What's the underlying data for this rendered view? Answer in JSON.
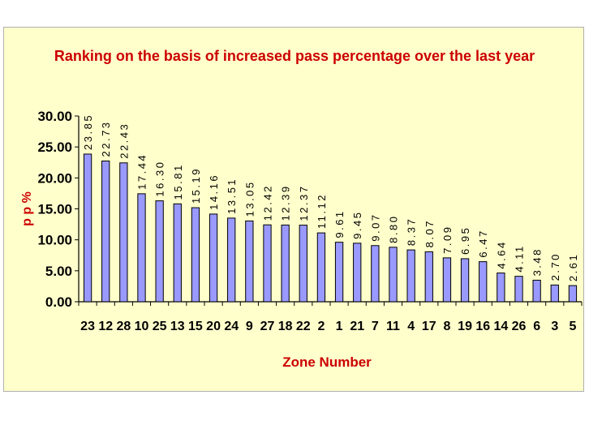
{
  "chart_data": {
    "type": "bar",
    "title": "Ranking on the basis of increased pass percentage over the last year",
    "xlabel": "Zone Number",
    "ylabel": "p p %",
    "ylim": [
      0,
      30
    ],
    "yticks": [
      "0.00",
      "5.00",
      "10.00",
      "15.00",
      "20.00",
      "25.00",
      "30.00"
    ],
    "categories": [
      "23",
      "12",
      "28",
      "10",
      "25",
      "13",
      "15",
      "20",
      "24",
      "9",
      "27",
      "18",
      "22",
      "2",
      "1",
      "21",
      "7",
      "11",
      "4",
      "17",
      "8",
      "19",
      "16",
      "14",
      "26",
      "6",
      "3",
      "5"
    ],
    "values": [
      23.85,
      22.73,
      22.43,
      17.44,
      16.3,
      15.81,
      15.19,
      14.16,
      13.51,
      13.05,
      12.42,
      12.39,
      12.37,
      11.12,
      9.61,
      9.45,
      9.07,
      8.8,
      8.37,
      8.07,
      7.09,
      6.95,
      6.47,
      4.64,
      4.11,
      3.48,
      2.7,
      2.61
    ],
    "labels": [
      "23.85",
      "22.73",
      "22.43",
      "17.44",
      "16.30",
      "15.81",
      "15.19",
      "14.16",
      "13.51",
      "13.05",
      "12.42",
      "12.39",
      "12.37",
      "11.12",
      "9.61",
      "9.45",
      "9.07",
      "8.80",
      "8.37",
      "8.07",
      "7.09",
      "6.95",
      "6.47",
      "4.64",
      "4.11",
      "3.48",
      "2.70",
      "2.61"
    ],
    "bar_color": "#9999ff",
    "title_color": "#cc0000",
    "axis_label_color": "#cc0000"
  }
}
